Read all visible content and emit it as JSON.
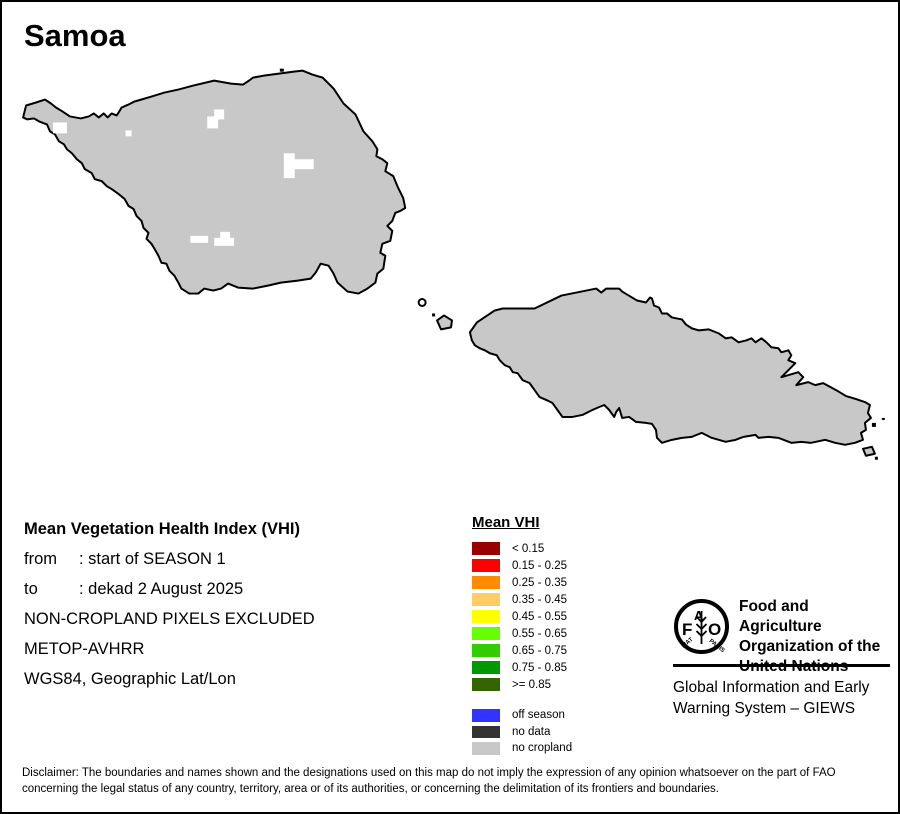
{
  "title": "Samoa",
  "info": {
    "heading": "Mean Vegetation Health Index (VHI)",
    "rows": [
      {
        "label": "from",
        "value": ": start of SEASON 1"
      },
      {
        "label": "to",
        "value": ": dekad 2 August 2025"
      }
    ],
    "lines": [
      "NON-CROPLAND PIXELS EXCLUDED",
      "METOP-AVHRR",
      "WGS84, Geographic Lat/Lon"
    ]
  },
  "legend": {
    "title": "Mean VHI",
    "classes": [
      {
        "label": "< 0.15",
        "color": "#990000"
      },
      {
        "label": "0.15 - 0.25",
        "color": "#ff0000"
      },
      {
        "label": "0.25 - 0.35",
        "color": "#ff8c00"
      },
      {
        "label": "0.35 - 0.45",
        "color": "#ffcc66"
      },
      {
        "label": "0.45 - 0.55",
        "color": "#ffff00"
      },
      {
        "label": "0.55 - 0.65",
        "color": "#66ff00"
      },
      {
        "label": "0.65 - 0.75",
        "color": "#33cc00"
      },
      {
        "label": "0.75 - 0.85",
        "color": "#009900"
      },
      {
        "label": ">= 0.85",
        "color": "#336600"
      }
    ],
    "extra": [
      {
        "label": "off season",
        "color": "#3333ff"
      },
      {
        "label": "no data",
        "color": "#333333"
      },
      {
        "label": "no cropland",
        "color": "#c8c8c8"
      }
    ]
  },
  "org": {
    "name_lines": [
      "Food and Agriculture",
      "Organization of the",
      "United Nations"
    ],
    "subtitle_lines": [
      "Global Information and Early",
      "Warning System – GIEWS"
    ],
    "logo_letters": {
      "f": "F",
      "a": "A",
      "o": "O",
      "motto_left": "FIAT",
      "motto_right": "PANIS"
    }
  },
  "disclaimer_lines": [
    "Disclaimer: The boundaries and names shown and the designations used on this map do not imply the expression of any opinion whatsoever on the part of FAO",
    "concerning the legal status of any country, territory, area or of its authorities, or concerning the delimitation of its frontiers and boundaries."
  ],
  "map": {
    "land_color": "#c8c8c8",
    "outline_color": "#000000",
    "background_color": "#ffffff"
  }
}
